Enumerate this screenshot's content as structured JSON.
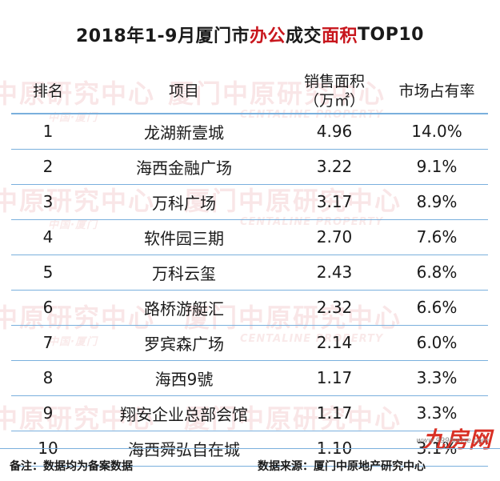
{
  "title": {
    "prefix": "2018年1-9月厦门市",
    "highlight1": "办公",
    "mid": "成交",
    "highlight2": "面积",
    "suffix": "TOP10"
  },
  "table": {
    "headers": {
      "rank": "排名",
      "project": "项目",
      "area_line1": "销售面积",
      "area_line2": "（万㎡）",
      "share": "市场占有率"
    },
    "rows": [
      {
        "rank": "1",
        "project": "龙湖新壹城",
        "area": "4.96",
        "share": "14.0%"
      },
      {
        "rank": "2",
        "project": "海西金融广场",
        "area": "3.22",
        "share": "9.1%"
      },
      {
        "rank": "3",
        "project": "万科广场",
        "area": "3.17",
        "share": "8.9%"
      },
      {
        "rank": "4",
        "project": "软件园三期",
        "area": "2.70",
        "share": "7.6%"
      },
      {
        "rank": "5",
        "project": "万科云玺",
        "area": "2.43",
        "share": "6.8%"
      },
      {
        "rank": "6",
        "project": "路桥游艇汇",
        "area": "2.32",
        "share": "6.6%"
      },
      {
        "rank": "7",
        "project": "罗宾森广场",
        "area": "2.14",
        "share": "6.0%"
      },
      {
        "rank": "8",
        "project": "海西9號",
        "area": "1.17",
        "share": "3.3%"
      },
      {
        "rank": "9",
        "project": "翔安企业总部会馆",
        "area": "1.17",
        "share": "3.3%"
      },
      {
        "rank": "10",
        "project": "海西舜弘自在城",
        "area": "1.10",
        "share": "3.1%"
      }
    ]
  },
  "footer": {
    "note": "备注：数据均为备案数据",
    "source": "数据来源：厦门中原地产研究中心"
  },
  "watermark": {
    "main_a": "中原研究中心",
    "main_b": "厦门中原研究中心",
    "sub_a": "中国·厦门",
    "sub_b": "CENTALINE PROPERTY"
  },
  "logo": {
    "text": "九房网",
    "site": "www.999house.com"
  },
  "colors": {
    "accent_red": "#c8161d",
    "rule_blue": "#7ab0dd"
  }
}
